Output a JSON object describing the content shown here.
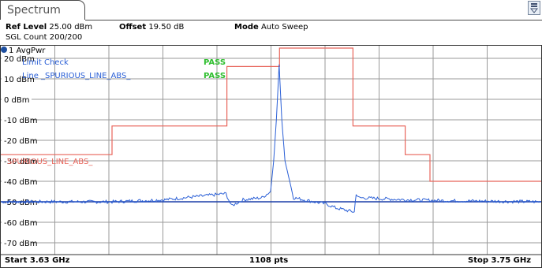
{
  "tab": {
    "title": "Spectrum"
  },
  "settings": {
    "ref_level_label": "Ref Level",
    "ref_level_value": "25.00 dBm",
    "offset_label": "Offset",
    "offset_value": "19.50 dB",
    "mode_label": "Mode",
    "mode_value": "Auto Sweep",
    "sgl_count": "SGL Count 200/200"
  },
  "trace_label": "1 AvgPwr",
  "limit": {
    "check_label": "Limit Check",
    "check_result": "PASS",
    "line_label": "Line _SPURIOUS_LINE_ABS_",
    "line_result": "PASS",
    "line_name": "SPURIOUS_LINE_ABS_"
  },
  "footer": {
    "start": "Start 3.63 GHz",
    "points": "1108 pts",
    "stop": "Stop 3.75 GHz"
  },
  "colors": {
    "trace": "#2a5fd6",
    "limit": "#e8645a",
    "pass": "#2fbf2f",
    "ref_line": "#1c3ea8"
  },
  "chart_data": {
    "type": "line",
    "ylim": [
      -75,
      25
    ],
    "ytick_values": [
      20,
      10,
      0,
      -10,
      -20,
      -30,
      -40,
      -50,
      -60,
      -70
    ],
    "ytick_labels": [
      "20 dBm",
      "10 dBm",
      "0 dBm",
      "-10 dBm",
      "-20 dBm",
      "-30 dBm",
      "-40 dBm",
      "-50 dBm",
      "-60 dBm",
      "-70 dBm"
    ],
    "x_range_ghz": [
      3.63,
      3.75
    ],
    "grid": true,
    "reference_line_dbm": -50,
    "limit_line": {
      "name": "SPURIOUS_LINE_ABS_",
      "x_ghz": [
        3.63,
        3.6547,
        3.6547,
        3.6802,
        3.6802,
        3.6919,
        3.6919,
        3.7082,
        3.7082,
        3.7198,
        3.7198,
        3.7253,
        3.7253,
        3.75
      ],
      "y_dbm": [
        -27,
        -27,
        -13,
        -13,
        16,
        16,
        25,
        25,
        -13,
        -13,
        -27,
        -27,
        -40,
        -40
      ]
    },
    "trace": {
      "name": "1 AvgPwr",
      "x_ghz": [
        3.63,
        3.6547,
        3.6664,
        3.68,
        3.6806,
        3.6812,
        3.6821,
        3.6838,
        3.688,
        3.6899,
        3.6906,
        3.6912,
        3.6918,
        3.6924,
        3.6931,
        3.695,
        3.6995,
        3.7022,
        3.7044,
        3.7085,
        3.7089,
        3.7094,
        3.72,
        3.73,
        3.75
      ],
      "y_dbm": [
        -50,
        -50,
        -49,
        -46,
        -49,
        -52,
        -51,
        -49,
        -48,
        -45,
        -30,
        -10,
        17,
        -10,
        -30,
        -48,
        -50,
        -51,
        -53,
        -55,
        -46,
        -48,
        -49,
        -49.5,
        -50
      ]
    }
  }
}
